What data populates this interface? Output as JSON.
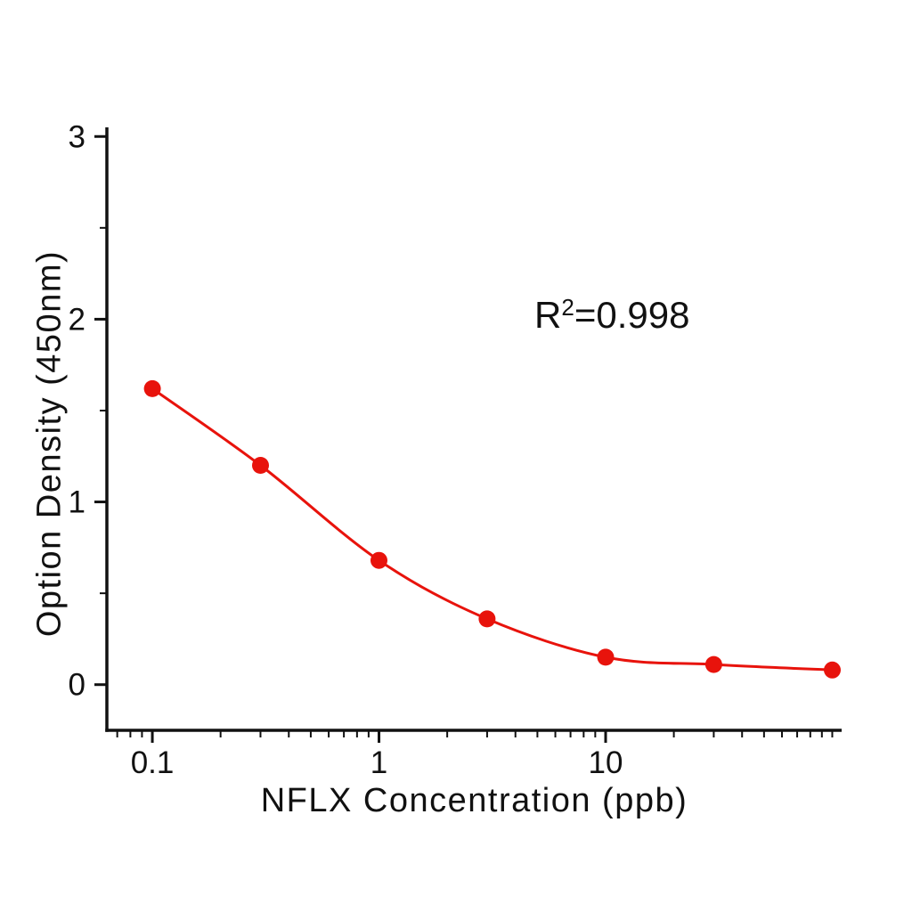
{
  "page": {
    "background": "#ffffff",
    "text_color": "#111111"
  },
  "figure": {
    "annotation": {
      "base": "R",
      "sup": "2",
      "rest": "=0.998"
    }
  },
  "chart_data": {
    "type": "scatter",
    "subtype": "scatter-with-fitted-curve",
    "x": [
      0.1,
      0.3,
      1,
      3,
      10,
      30,
      100
    ],
    "y": [
      1.62,
      1.2,
      0.68,
      0.36,
      0.15,
      0.11,
      0.08
    ],
    "series_color": "#e8130c",
    "axis_color": "#111111",
    "marker": "circle",
    "marker_radius": 9.5,
    "line_width": 3,
    "axis_line_width": 3.5,
    "title": "",
    "xlabel": "NFLX Concentration (ppb)",
    "ylabel": "Option Density (450nm)",
    "x_scale": "log",
    "y_scale": "linear",
    "xlim": [
      0.063,
      110
    ],
    "ylim": [
      -0.25,
      3.05
    ],
    "x_major_ticks": [
      0.1,
      1,
      10
    ],
    "x_tick_labels": [
      "0.1",
      "1",
      "10"
    ],
    "y_major_ticks": [
      0,
      1,
      2,
      3
    ],
    "y_tick_labels": [
      "0",
      "1",
      "2",
      "3"
    ],
    "y_minor_step": 0.5,
    "grid": false,
    "legend": null,
    "annotation": "R²=0.998"
  }
}
